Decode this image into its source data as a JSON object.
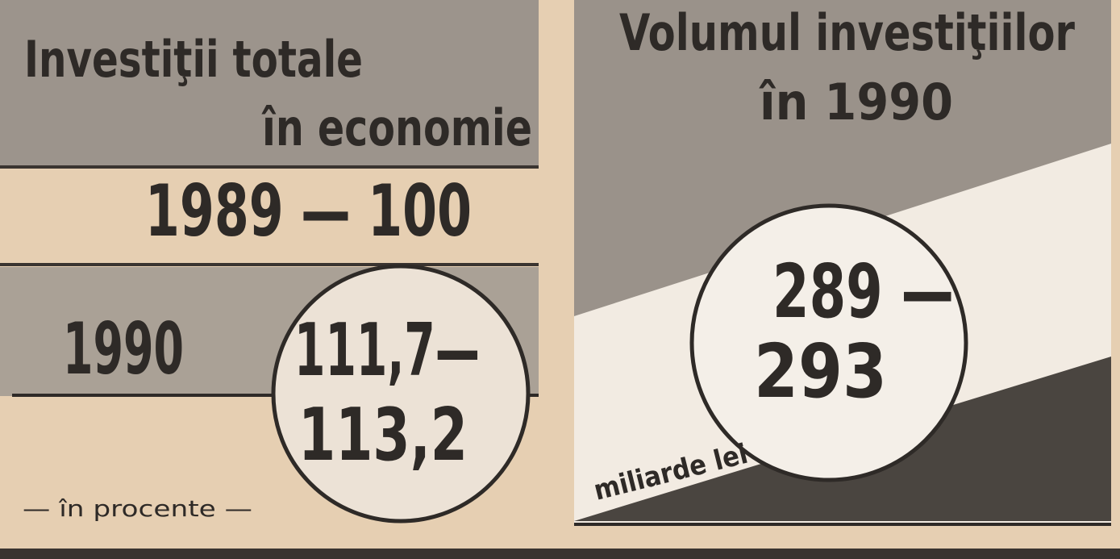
{
  "left": {
    "title": [
      "Investiţii totale",
      "în economie"
    ],
    "base": "1989 — 100",
    "year": "1990",
    "value": [
      "111,7—",
      "113,2"
    ],
    "unit": "— în procente —"
  },
  "right": {
    "title": [
      "Volumul investiţiilor",
      "în 1990"
    ],
    "value": [
      "289 —",
      "293"
    ],
    "unit": "miliarde lei"
  }
}
